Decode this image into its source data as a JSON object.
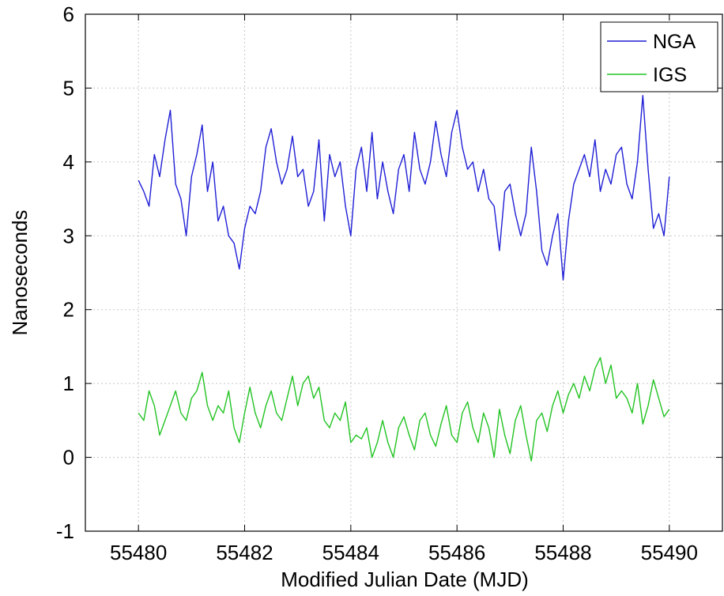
{
  "chart_data": {
    "type": "line",
    "title": "",
    "xlabel": "Modified Julian Date (MJD)",
    "ylabel": "Nanoseconds",
    "xlim": [
      55479,
      55491
    ],
    "ylim": [
      -1,
      6
    ],
    "xticks": [
      55480,
      55482,
      55484,
      55486,
      55488,
      55490
    ],
    "yticks": [
      -1,
      0,
      1,
      2,
      3,
      4,
      5,
      6
    ],
    "grid": true,
    "legend_position": "top-right",
    "series": [
      {
        "name": "NGA",
        "color": "#1f1fd6",
        "x": [
          55480.0,
          55480.1,
          55480.2,
          55480.3,
          55480.4,
          55480.5,
          55480.6,
          55480.7,
          55480.8,
          55480.9,
          55481.0,
          55481.1,
          55481.2,
          55481.3,
          55481.4,
          55481.5,
          55481.6,
          55481.7,
          55481.8,
          55481.9,
          55482.0,
          55482.1,
          55482.2,
          55482.3,
          55482.4,
          55482.5,
          55482.6,
          55482.7,
          55482.8,
          55482.9,
          55483.0,
          55483.1,
          55483.2,
          55483.3,
          55483.4,
          55483.5,
          55483.6,
          55483.7,
          55483.8,
          55483.9,
          55484.0,
          55484.1,
          55484.2,
          55484.3,
          55484.4,
          55484.5,
          55484.6,
          55484.7,
          55484.8,
          55484.9,
          55485.0,
          55485.1,
          55485.2,
          55485.3,
          55485.4,
          55485.5,
          55485.6,
          55485.7,
          55485.8,
          55485.9,
          55486.0,
          55486.1,
          55486.2,
          55486.3,
          55486.4,
          55486.5,
          55486.6,
          55486.7,
          55486.8,
          55486.9,
          55487.0,
          55487.1,
          55487.2,
          55487.3,
          55487.4,
          55487.5,
          55487.6,
          55487.7,
          55487.8,
          55487.9,
          55488.0,
          55488.1,
          55488.2,
          55488.3,
          55488.4,
          55488.5,
          55488.6,
          55488.7,
          55488.8,
          55488.9,
          55489.0,
          55489.1,
          55489.2,
          55489.3,
          55489.4,
          55489.5,
          55489.6,
          55489.7,
          55489.8,
          55489.9,
          55490.0
        ],
        "y": [
          3.75,
          3.6,
          3.4,
          4.1,
          3.8,
          4.3,
          4.7,
          3.7,
          3.5,
          3.0,
          3.8,
          4.1,
          4.5,
          3.6,
          4.0,
          3.2,
          3.4,
          3.0,
          2.9,
          2.55,
          3.1,
          3.4,
          3.3,
          3.6,
          4.2,
          4.45,
          4.0,
          3.7,
          3.9,
          4.35,
          3.8,
          3.9,
          3.4,
          3.6,
          4.3,
          3.2,
          4.1,
          3.8,
          4.0,
          3.4,
          3.0,
          3.9,
          4.2,
          3.6,
          4.4,
          3.5,
          4.0,
          3.6,
          3.3,
          3.9,
          4.1,
          3.6,
          4.4,
          3.9,
          3.7,
          4.0,
          4.55,
          4.1,
          3.8,
          4.4,
          4.7,
          4.2,
          3.9,
          4.0,
          3.6,
          3.9,
          3.5,
          3.4,
          2.8,
          3.6,
          3.7,
          3.3,
          3.0,
          3.3,
          4.2,
          3.6,
          2.8,
          2.6,
          3.0,
          3.3,
          2.4,
          3.2,
          3.7,
          3.9,
          4.1,
          3.8,
          4.3,
          3.6,
          3.9,
          3.7,
          4.1,
          4.2,
          3.7,
          3.5,
          4.0,
          4.9,
          3.9,
          3.1,
          3.3,
          3.0,
          3.8
        ]
      },
      {
        "name": "IGS",
        "color": "#22c322",
        "x": [
          55480.0,
          55480.1,
          55480.2,
          55480.3,
          55480.4,
          55480.5,
          55480.6,
          55480.7,
          55480.8,
          55480.9,
          55481.0,
          55481.1,
          55481.2,
          55481.3,
          55481.4,
          55481.5,
          55481.6,
          55481.7,
          55481.8,
          55481.9,
          55482.0,
          55482.1,
          55482.2,
          55482.3,
          55482.4,
          55482.5,
          55482.6,
          55482.7,
          55482.8,
          55482.9,
          55483.0,
          55483.1,
          55483.2,
          55483.3,
          55483.4,
          55483.5,
          55483.6,
          55483.7,
          55483.8,
          55483.9,
          55484.0,
          55484.1,
          55484.2,
          55484.3,
          55484.4,
          55484.5,
          55484.6,
          55484.7,
          55484.8,
          55484.9,
          55485.0,
          55485.1,
          55485.2,
          55485.3,
          55485.4,
          55485.5,
          55485.6,
          55485.7,
          55485.8,
          55485.9,
          55486.0,
          55486.1,
          55486.2,
          55486.3,
          55486.4,
          55486.5,
          55486.6,
          55486.7,
          55486.8,
          55486.9,
          55487.0,
          55487.1,
          55487.2,
          55487.3,
          55487.4,
          55487.5,
          55487.6,
          55487.7,
          55487.8,
          55487.9,
          55488.0,
          55488.1,
          55488.2,
          55488.3,
          55488.4,
          55488.5,
          55488.6,
          55488.7,
          55488.8,
          55488.9,
          55489.0,
          55489.1,
          55489.2,
          55489.3,
          55489.4,
          55489.5,
          55489.6,
          55489.7,
          55489.8,
          55489.9,
          55490.0
        ],
        "y": [
          0.6,
          0.5,
          0.9,
          0.7,
          0.3,
          0.5,
          0.7,
          0.9,
          0.6,
          0.5,
          0.8,
          0.9,
          1.15,
          0.7,
          0.5,
          0.7,
          0.6,
          0.9,
          0.4,
          0.2,
          0.6,
          0.95,
          0.6,
          0.4,
          0.7,
          0.9,
          0.6,
          0.5,
          0.8,
          1.1,
          0.7,
          1.0,
          1.1,
          0.8,
          0.95,
          0.5,
          0.4,
          0.6,
          0.5,
          0.75,
          0.2,
          0.3,
          0.25,
          0.4,
          0.0,
          0.2,
          0.5,
          0.2,
          0.0,
          0.4,
          0.55,
          0.3,
          0.1,
          0.5,
          0.6,
          0.3,
          0.15,
          0.45,
          0.7,
          0.3,
          0.2,
          0.6,
          0.75,
          0.4,
          0.2,
          0.6,
          0.4,
          0.0,
          0.65,
          0.3,
          0.05,
          0.5,
          0.7,
          0.3,
          -0.05,
          0.5,
          0.6,
          0.35,
          0.7,
          0.9,
          0.6,
          0.85,
          1.0,
          0.8,
          1.1,
          0.9,
          1.2,
          1.35,
          1.0,
          1.25,
          0.8,
          0.9,
          0.8,
          0.6,
          1.0,
          0.45,
          0.7,
          1.05,
          0.8,
          0.55,
          0.65
        ]
      }
    ]
  }
}
